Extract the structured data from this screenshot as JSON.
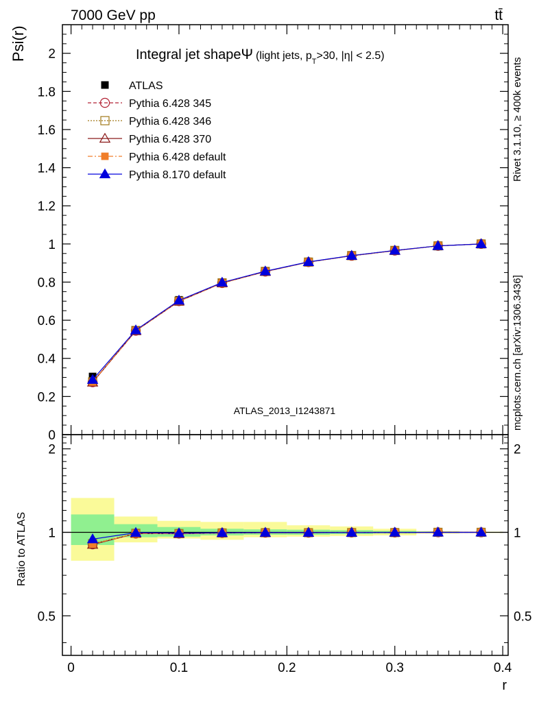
{
  "header": {
    "left": "7000 GeV pp",
    "right": "tt̄"
  },
  "side": {
    "rivet": "Rivet 3.1.10, ≥ 400k events",
    "mcplots": "mcplots.cern.ch [arXiv:1306.3436]"
  },
  "chart_data": {
    "type": "line",
    "title_main": "Integral jet shape",
    "title_symbol": "Ψ",
    "title_sub": "(light jets, p",
    "title_sub_T": "T",
    "title_sub_rest": ">30, |η| < 2.5)",
    "analysis_label": "ATLAS_2013_I1243871",
    "xlabel": "r",
    "ylabel": "Psi(r)",
    "ratio_ylabel": "Ratio to ATLAS",
    "xlim": [
      -0.008,
      0.405
    ],
    "ylim": [
      0,
      2.15
    ],
    "ratio_ylim": [
      0.36,
      2.25
    ],
    "x_ticks": [
      0,
      0.1,
      0.2,
      0.3,
      0.4
    ],
    "x_tick_labels": [
      "0",
      "0.1",
      "0.2",
      "0.3",
      "0.4"
    ],
    "y_ticks": [
      0,
      0.2,
      0.4,
      0.6,
      0.8,
      1,
      1.2,
      1.4,
      1.6,
      1.8,
      2
    ],
    "y_tick_labels": [
      "0",
      "0.2",
      "0.4",
      "0.6",
      "0.8",
      "1",
      "1.2",
      "1.4",
      "1.6",
      "1.8",
      "2"
    ],
    "ratio_y_ticks": [
      0.5,
      1,
      2
    ],
    "ratio_y_tick_labels": [
      "0.5",
      "1",
      "2"
    ],
    "x": [
      0.02,
      0.06,
      0.1,
      0.14,
      0.18,
      0.22,
      0.26,
      0.3,
      0.34,
      0.38
    ],
    "bin_edges": [
      0,
      0.04,
      0.08,
      0.12,
      0.16,
      0.2,
      0.24,
      0.28,
      0.32,
      0.36,
      0.4
    ],
    "data": {
      "name": "ATLAS",
      "values": [
        0.305,
        0.55,
        0.707,
        0.8,
        0.858,
        0.908,
        0.94,
        0.968,
        0.99,
        1.0
      ],
      "color": "#000000"
    },
    "series": [
      {
        "name": "Pythia 6.428 345",
        "color": "#b22234",
        "marker": "circle",
        "dash": "5,3",
        "values": [
          0.275,
          0.545,
          0.7,
          0.795,
          0.855,
          0.905,
          0.938,
          0.965,
          0.99,
          1.0
        ],
        "ratio": [
          0.905,
          0.99,
          0.99,
          0.995,
          0.997,
          0.997,
          0.998,
          0.998,
          1.0,
          1.0
        ]
      },
      {
        "name": "Pythia 6.428 346",
        "color": "#a07818",
        "marker": "square-open",
        "dash": "2,2",
        "values": [
          0.277,
          0.546,
          0.7,
          0.796,
          0.856,
          0.905,
          0.939,
          0.966,
          0.99,
          1.0
        ],
        "ratio": [
          0.91,
          0.992,
          0.99,
          0.995,
          0.997,
          0.997,
          0.998,
          0.998,
          1.0,
          1.0
        ]
      },
      {
        "name": "Pythia 6.428 370",
        "color": "#8b1a1a",
        "marker": "triangle-open",
        "dash": "",
        "values": [
          0.274,
          0.544,
          0.699,
          0.795,
          0.855,
          0.905,
          0.938,
          0.965,
          0.99,
          1.0
        ],
        "ratio": [
          0.903,
          0.99,
          0.988,
          0.994,
          0.996,
          0.997,
          0.998,
          0.998,
          1.0,
          1.0
        ]
      },
      {
        "name": "Pythia 6.428 default",
        "color": "#f07e2a",
        "marker": "square",
        "dash": "7,3,2,3",
        "values": [
          0.276,
          0.545,
          0.7,
          0.795,
          0.855,
          0.905,
          0.938,
          0.965,
          0.99,
          1.0
        ],
        "ratio": [
          0.907,
          0.99,
          0.989,
          0.994,
          0.996,
          0.997,
          0.998,
          0.998,
          1.0,
          1.0
        ]
      },
      {
        "name": "Pythia 8.170 default",
        "color": "#0000dd",
        "marker": "triangle",
        "dash": "",
        "values": [
          0.288,
          0.548,
          0.704,
          0.798,
          0.857,
          0.906,
          0.939,
          0.966,
          0.99,
          1.0
        ],
        "ratio": [
          0.945,
          0.997,
          0.993,
          0.996,
          0.998,
          0.998,
          0.998,
          0.999,
          1.0,
          1.0
        ]
      }
    ],
    "ratio_band_green": [
      [
        0.9,
        1.16
      ],
      [
        0.96,
        1.07
      ],
      [
        0.965,
        1.045
      ],
      [
        0.975,
        1.03
      ],
      [
        0.98,
        1.025
      ],
      [
        0.98,
        1.022
      ],
      [
        0.985,
        1.018
      ],
      [
        0.99,
        1.012
      ],
      [
        0.995,
        1.006
      ],
      [
        0.998,
        1.003
      ]
    ],
    "ratio_band_yellow": [
      [
        0.79,
        1.33
      ],
      [
        0.92,
        1.14
      ],
      [
        0.95,
        1.1
      ],
      [
        0.94,
        1.09
      ],
      [
        0.96,
        1.09
      ],
      [
        0.965,
        1.06
      ],
      [
        0.97,
        1.05
      ],
      [
        0.975,
        1.03
      ],
      [
        0.99,
        1.01
      ],
      [
        0.995,
        1.005
      ]
    ],
    "colors": {
      "band_green": "#90f090",
      "band_yellow": "#fafa99",
      "analysis_label": "#999999",
      "side_text": "#888888"
    }
  }
}
